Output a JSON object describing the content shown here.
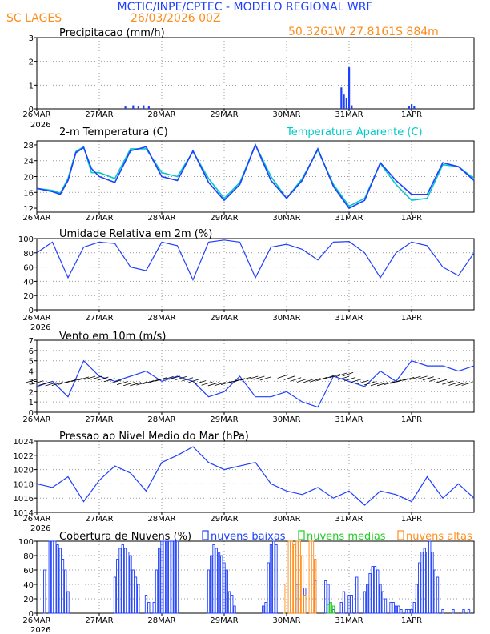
{
  "header": {
    "title": "MCTIC/INPE/CPTEC - MODELO REGIONAL WRF",
    "station": "SC LAGES",
    "run": "26/03/2026 00Z",
    "coords": "50.3261W 27.8161S 884m"
  },
  "colors": {
    "title": "#1f3fff",
    "orange": "#ff8c1a",
    "blue": "#1f3fff",
    "cyan": "#00c8c8",
    "green": "#22cc22",
    "grid": "#9a9a9a"
  },
  "time_axis": {
    "labels": [
      "26MAR",
      "27MAR",
      "28MAR",
      "29MAR",
      "30MAR",
      "31MAR",
      "1APR"
    ],
    "year": "2026",
    "hours_per_day": 24,
    "total_hours": 168
  },
  "chart_data": [
    {
      "type": "bar",
      "title": "Precipitacao (mm/h)",
      "ylim": [
        0,
        3
      ],
      "yticks": [
        "0",
        "1",
        "2",
        "3"
      ],
      "x_hours": [
        34,
        37,
        39,
        41,
        43,
        117,
        118,
        119,
        120,
        121,
        143,
        144,
        145
      ],
      "values": [
        0.1,
        0.15,
        0.1,
        0.15,
        0.1,
        0.9,
        0.6,
        0.45,
        1.75,
        0.15,
        0.1,
        0.2,
        0.1
      ]
    },
    {
      "type": "line",
      "title": "2-m Temperatura (C)",
      "legend": "Temperatura Aparente (C)",
      "ylim": [
        11,
        29
      ],
      "yticks": [
        "12",
        "16",
        "20",
        "24",
        "28"
      ],
      "series": [
        {
          "name": "Temperatura (C)",
          "x_hours": [
            0,
            6,
            9,
            12,
            15,
            18,
            21,
            24,
            30,
            36,
            42,
            48,
            54,
            60,
            66,
            72,
            78,
            84,
            90,
            96,
            102,
            108,
            114,
            120,
            126,
            132,
            138,
            144,
            150,
            156,
            162,
            168
          ],
          "values": [
            17,
            16.2,
            15.5,
            19,
            26,
            27.3,
            22,
            20,
            18.5,
            26.5,
            27.5,
            20,
            19,
            26.5,
            18.5,
            14,
            18,
            28,
            19,
            14.5,
            19,
            27,
            17.5,
            12,
            14,
            23.5,
            19,
            15.5,
            15.5,
            23.5,
            22.5,
            19
          ]
        },
        {
          "name": "Temperatura Aparente (C)",
          "x_hours": [
            0,
            6,
            9,
            12,
            15,
            18,
            21,
            24,
            30,
            36,
            42,
            48,
            54,
            60,
            66,
            72,
            78,
            84,
            90,
            96,
            102,
            108,
            114,
            120,
            126,
            132,
            138,
            144,
            150,
            156,
            162,
            168
          ],
          "values": [
            17,
            16.5,
            15.8,
            19.5,
            26.3,
            27.5,
            21,
            21,
            19.5,
            27,
            27,
            21,
            20,
            26.3,
            19.5,
            14.5,
            18.5,
            28,
            20,
            14.5,
            19.5,
            26.7,
            18,
            12.5,
            14.5,
            23.3,
            18,
            14,
            14.5,
            23,
            22.5,
            19.5
          ]
        }
      ]
    },
    {
      "type": "line",
      "title": "Umidade Relativa em 2m (%)",
      "ylim": [
        0,
        100
      ],
      "yticks": [
        "0",
        "20",
        "40",
        "60",
        "80",
        "100"
      ],
      "series": [
        {
          "name": "Umidade",
          "x_hours": [
            0,
            6,
            12,
            18,
            24,
            30,
            36,
            42,
            48,
            54,
            60,
            66,
            72,
            78,
            84,
            90,
            96,
            102,
            108,
            114,
            120,
            126,
            132,
            138,
            144,
            150,
            156,
            162,
            168
          ],
          "values": [
            80,
            95,
            45,
            88,
            95,
            93,
            60,
            55,
            95,
            90,
            42,
            95,
            98,
            95,
            45,
            88,
            92,
            85,
            70,
            95,
            96,
            80,
            45,
            80,
            95,
            90,
            60,
            48,
            80
          ]
        }
      ]
    },
    {
      "type": "line",
      "title": "Vento em 10m (m/s)",
      "ylim": [
        0,
        7
      ],
      "yticks": [
        "0",
        "1",
        "2",
        "3",
        "4",
        "5",
        "6",
        "7"
      ],
      "series": [
        {
          "name": "Velocidade",
          "x_hours": [
            0,
            6,
            12,
            18,
            24,
            30,
            36,
            42,
            48,
            54,
            60,
            66,
            72,
            78,
            84,
            90,
            96,
            102,
            108,
            114,
            120,
            126,
            132,
            138,
            144,
            150,
            156,
            162,
            168
          ],
          "values": [
            2.5,
            3.0,
            1.5,
            5.0,
            3.5,
            3.0,
            3.5,
            4.0,
            3.0,
            3.5,
            3.0,
            1.5,
            2.0,
            3.5,
            1.5,
            1.5,
            2.0,
            1.0,
            0.5,
            3.5,
            3.0,
            2.5,
            4.0,
            3.0,
            5.0,
            4.5,
            4.5,
            4.0,
            4.5
          ]
        }
      ]
    },
    {
      "type": "line",
      "title": "Pressao ao Nivel Medio do Mar (hPa)",
      "ylim": [
        1014,
        1024
      ],
      "yticks": [
        "1014",
        "1016",
        "1018",
        "1020",
        "1022",
        "1024"
      ],
      "series": [
        {
          "name": "Pressao",
          "x_hours": [
            0,
            6,
            12,
            18,
            24,
            30,
            36,
            42,
            48,
            54,
            60,
            66,
            72,
            78,
            84,
            90,
            96,
            102,
            108,
            114,
            120,
            126,
            132,
            138,
            144,
            150,
            156,
            162,
            168
          ],
          "values": [
            1018,
            1017.5,
            1019,
            1015.5,
            1018.5,
            1020.5,
            1019.5,
            1017,
            1021,
            1022,
            1023.2,
            1021,
            1020,
            1020.5,
            1021,
            1018,
            1017,
            1016.5,
            1017.5,
            1016,
            1017,
            1015,
            1017,
            1016.5,
            1015.5,
            1019,
            1016,
            1018,
            1016
          ]
        }
      ]
    },
    {
      "type": "bar",
      "title": "Cobertura de Nuvens (%)",
      "ylim": [
        0,
        100
      ],
      "yticks": [
        "0",
        "20",
        "40",
        "60",
        "80",
        "100"
      ],
      "legend": [
        "nuvens baixas",
        "nuvens medias",
        "nuvens altas"
      ],
      "series": [
        {
          "name": "nuvens baixas",
          "x_hours": [
            3,
            5,
            6,
            7,
            8,
            9,
            10,
            11,
            12,
            30,
            31,
            32,
            33,
            34,
            35,
            36,
            37,
            38,
            39,
            42,
            43,
            45,
            46,
            47,
            48,
            49,
            50,
            51,
            52,
            53,
            54,
            66,
            67,
            68,
            69,
            70,
            71,
            72,
            73,
            74,
            75,
            76,
            87,
            88,
            89,
            90,
            91,
            92,
            100,
            103,
            107,
            111,
            112,
            114,
            117,
            118,
            120,
            121,
            123,
            126,
            127,
            128,
            129,
            130,
            131,
            132,
            133,
            134,
            136,
            137,
            138,
            139,
            140,
            142,
            143,
            144,
            145,
            146,
            147,
            148,
            149,
            150,
            151,
            152,
            153,
            154,
            156,
            160,
            164,
            166
          ],
          "values": [
            60,
            100,
            100,
            100,
            95,
            90,
            75,
            60,
            30,
            50,
            75,
            90,
            95,
            90,
            85,
            80,
            60,
            50,
            40,
            25,
            15,
            15,
            60,
            90,
            100,
            100,
            100,
            100,
            100,
            100,
            100,
            60,
            80,
            95,
            90,
            85,
            80,
            70,
            60,
            30,
            25,
            10,
            10,
            15,
            70,
            95,
            100,
            95,
            40,
            35,
            45,
            45,
            40,
            5,
            15,
            30,
            25,
            25,
            50,
            30,
            40,
            55,
            65,
            65,
            60,
            40,
            30,
            20,
            15,
            15,
            10,
            10,
            5,
            5,
            5,
            5,
            15,
            40,
            70,
            85,
            90,
            85,
            100,
            85,
            60,
            50,
            5,
            5,
            5,
            5
          ]
        },
        {
          "name": "nuvens medias",
          "x_hours": [
            112,
            113,
            114
          ],
          "values": [
            12,
            15,
            10
          ]
        },
        {
          "name": "nuvens altas",
          "x_hours": [
            95,
            97,
            98,
            99,
            100,
            101,
            102,
            103,
            105,
            106,
            107
          ],
          "values": [
            40,
            100,
            100,
            95,
            100,
            100,
            80,
            25,
            100,
            100,
            75
          ]
        }
      ]
    }
  ]
}
